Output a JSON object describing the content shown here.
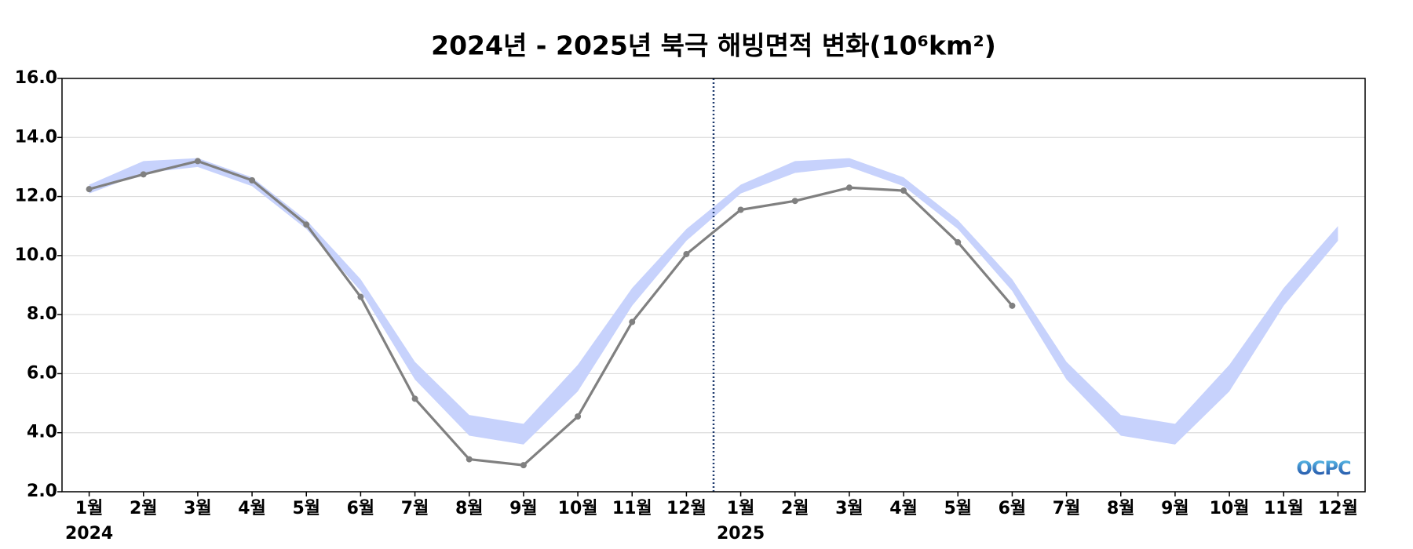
{
  "chart_data": {
    "type": "line",
    "title": "2024년 - 2025년 북극 해빙면적 변화(10⁶km²)",
    "categories": [
      "1월",
      "2월",
      "3월",
      "4월",
      "5월",
      "6월",
      "7월",
      "8월",
      "9월",
      "10월",
      "11월",
      "12월",
      "1월",
      "2월",
      "3월",
      "4월",
      "5월",
      "6월",
      "7월",
      "8월",
      "9월",
      "10월",
      "11월",
      "12월"
    ],
    "year_labels": [
      "2024",
      null,
      null,
      null,
      null,
      null,
      null,
      null,
      null,
      null,
      null,
      null,
      "2025",
      null,
      null,
      null,
      null,
      null,
      null,
      null,
      null,
      null,
      null,
      null
    ],
    "series": [
      {
        "color": "#808080",
        "values": [
          12.25,
          12.75,
          13.2,
          12.55,
          11.05,
          8.6,
          5.15,
          3.1,
          2.9,
          4.55,
          7.75,
          10.05,
          11.55,
          11.85,
          12.3,
          12.2,
          10.45,
          8.3,
          null,
          null,
          null,
          null,
          null,
          null
        ]
      }
    ],
    "band": {
      "color": "#c7d2fc",
      "lower": [
        12.1,
        12.8,
        13.0,
        12.35,
        10.9,
        8.8,
        5.8,
        3.9,
        3.6,
        5.4,
        8.3,
        10.5,
        12.1,
        12.8,
        13.0,
        12.35,
        10.9,
        8.8,
        5.8,
        3.9,
        3.6,
        5.4,
        8.3,
        10.5
      ],
      "upper": [
        12.4,
        13.2,
        13.3,
        12.65,
        11.2,
        9.2,
        6.4,
        4.6,
        4.3,
        6.3,
        8.9,
        10.9,
        12.4,
        13.2,
        13.3,
        12.65,
        11.2,
        9.2,
        6.4,
        4.6,
        4.3,
        6.3,
        8.9,
        11.0
      ]
    },
    "ylim": [
      2,
      16
    ],
    "yticks": [
      {
        "value": 2,
        "label": "2.0"
      },
      {
        "value": 4,
        "label": "4.0"
      },
      {
        "value": 6,
        "label": "6.0"
      },
      {
        "value": 8,
        "label": "8.0"
      },
      {
        "value": 10,
        "label": "10.0"
      },
      {
        "value": 12,
        "label": "12.0"
      },
      {
        "value": 14,
        "label": "14.0"
      },
      {
        "value": 16,
        "label": "16.0"
      }
    ],
    "grid": true,
    "logo": "OCPC"
  }
}
